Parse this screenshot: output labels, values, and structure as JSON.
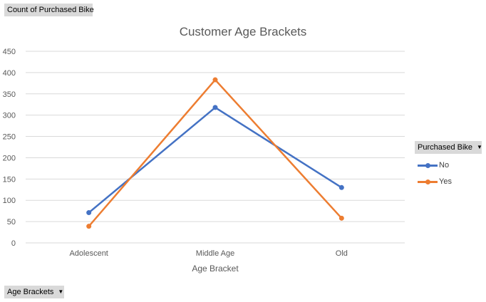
{
  "field_buttons": {
    "count": "Count of Purchased Bike",
    "age": "Age Brackets",
    "legend": "Purchased Bike"
  },
  "chart_data": {
    "type": "line",
    "title": "Customer Age Brackets",
    "xlabel": "Age Bracket",
    "ylabel": "",
    "categories": [
      "Adolescent",
      "Middle Age",
      "Old"
    ],
    "ylim": [
      0,
      450
    ],
    "yticks": [
      0,
      50,
      100,
      150,
      200,
      250,
      300,
      350,
      400,
      450
    ],
    "grid": true,
    "legend_position": "right",
    "series": [
      {
        "name": "No",
        "values": [
          71,
          318,
          130
        ],
        "color": "#4472c4"
      },
      {
        "name": "Yes",
        "values": [
          39,
          383,
          58
        ],
        "color": "#ed7d31"
      }
    ]
  }
}
